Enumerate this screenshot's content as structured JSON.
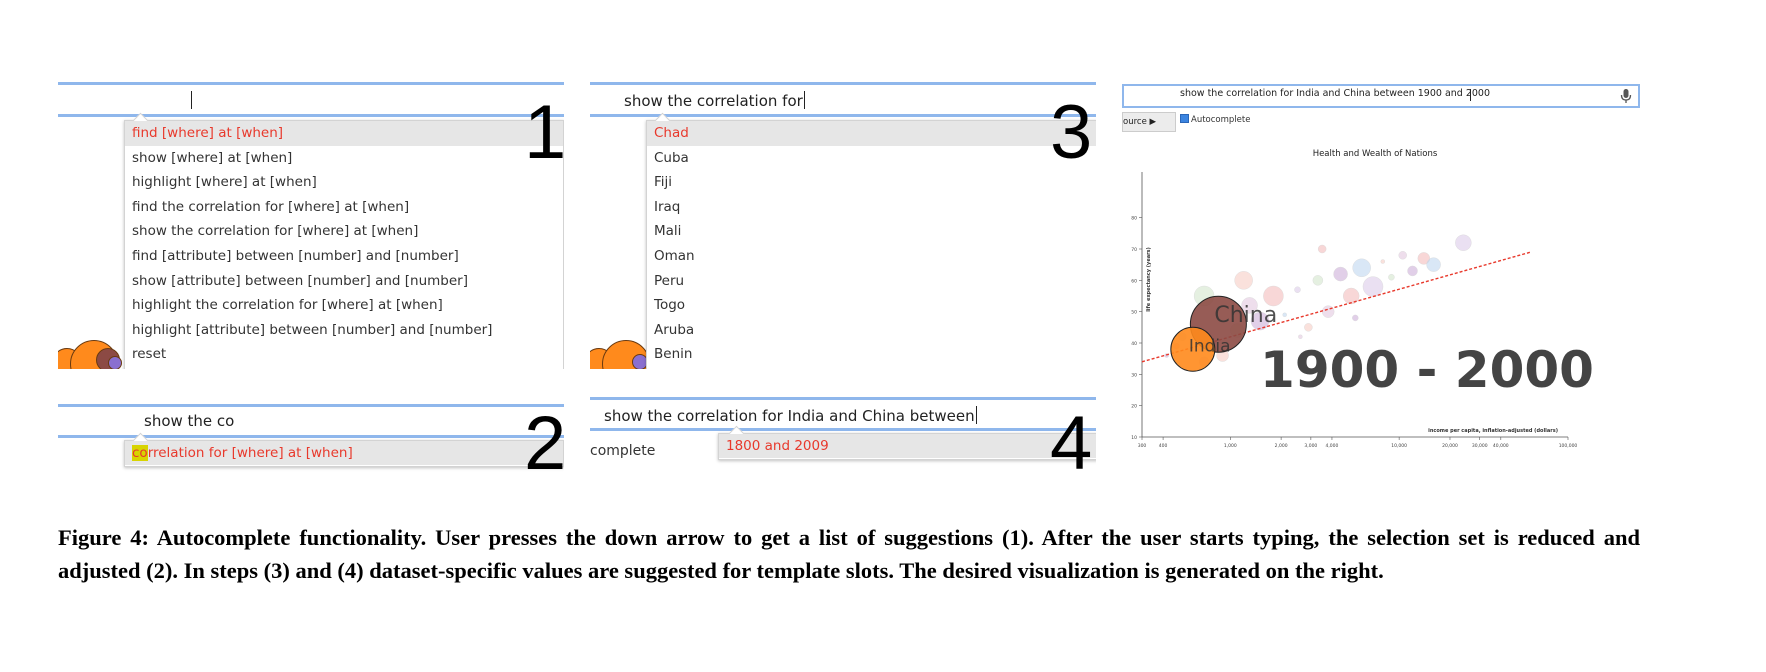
{
  "panel1": {
    "number": "1",
    "query": "",
    "suggestions": [
      "find [where] at [when]",
      "show [where] at [when]",
      "highlight [where] at [when]",
      "find the correlation for [where] at [when]",
      "show the correlation for [where] at [when]",
      "find [attribute] between [number] and [number]",
      "show [attribute] between [number] and [number]",
      "highlight the correlation for [where] at [when]",
      "highlight [attribute] between [number] and [number]",
      "reset"
    ],
    "selected_index": 0
  },
  "panel2": {
    "number": "2",
    "query": "show the co",
    "suggestion_match": "co",
    "suggestion_rest": "rrelation for [where] at [when]"
  },
  "panel3": {
    "number": "3",
    "query": "show the correlation for",
    "suggestions": [
      "Chad",
      "Cuba",
      "Fiji",
      "Iraq",
      "Mali",
      "Oman",
      "Peru",
      "Togo",
      "Aruba",
      "Benin"
    ],
    "selected_index": 0
  },
  "panel4": {
    "number": "4",
    "query": "show the correlation for India and China between",
    "suggestion": "1800 and 2009",
    "side_text": "complete"
  },
  "panel5": {
    "query": "show the correlation for India and China between 1900 and 2000",
    "source_button": "ource ▶",
    "autocomplete_label": "Autocomplete",
    "autocomplete_checked": true,
    "mic": "microphone-icon"
  },
  "chart_data": {
    "type": "scatter",
    "title": "Health and Wealth of Nations",
    "xlabel": "income per capita, inflation-adjusted (dollars)",
    "ylabel": "life expectancy (years)",
    "xscale": "log",
    "xlim": [
      300,
      100000
    ],
    "ylim": [
      10,
      85
    ],
    "x_ticks": [
      "300",
      "400",
      "1,000",
      "2,000",
      "3,000",
      "4,000",
      "10,000",
      "20,000",
      "30,000",
      "40,000",
      "100,000"
    ],
    "x_tick_values": [
      300,
      400,
      1000,
      2000,
      3000,
      4000,
      10000,
      20000,
      30000,
      40000,
      100000
    ],
    "y_ticks": [
      10,
      20,
      30,
      40,
      50,
      60,
      70,
      80
    ],
    "year_label": "1900 - 2000",
    "trend_line": {
      "from": [
        300,
        34
      ],
      "to": [
        60000,
        69
      ]
    },
    "highlighted": [
      {
        "name": "China",
        "x": 850,
        "y": 46,
        "color": "#8c4a44"
      },
      {
        "name": "India",
        "x": 600,
        "y": 38,
        "color": "#ff8a1c"
      }
    ],
    "background_points": [
      {
        "x": 420,
        "y": 36
      },
      {
        "x": 480,
        "y": 39
      },
      {
        "x": 520,
        "y": 42
      },
      {
        "x": 700,
        "y": 34
      },
      {
        "x": 900,
        "y": 36
      },
      {
        "x": 1100,
        "y": 44
      },
      {
        "x": 1300,
        "y": 52
      },
      {
        "x": 1500,
        "y": 47
      },
      {
        "x": 1800,
        "y": 55
      },
      {
        "x": 2100,
        "y": 49
      },
      {
        "x": 2500,
        "y": 57
      },
      {
        "x": 2900,
        "y": 45
      },
      {
        "x": 3300,
        "y": 60
      },
      {
        "x": 3800,
        "y": 50
      },
      {
        "x": 4500,
        "y": 62
      },
      {
        "x": 5200,
        "y": 55
      },
      {
        "x": 6000,
        "y": 64
      },
      {
        "x": 7000,
        "y": 58
      },
      {
        "x": 8000,
        "y": 66
      },
      {
        "x": 9000,
        "y": 61
      },
      {
        "x": 10500,
        "y": 68
      },
      {
        "x": 12000,
        "y": 63
      },
      {
        "x": 14000,
        "y": 67
      },
      {
        "x": 16000,
        "y": 65
      },
      {
        "x": 24000,
        "y": 72
      },
      {
        "x": 1200,
        "y": 60
      },
      {
        "x": 700,
        "y": 55
      },
      {
        "x": 2600,
        "y": 42
      },
      {
        "x": 5500,
        "y": 48
      },
      {
        "x": 3500,
        "y": 70
      }
    ]
  },
  "caption": {
    "label": "Figure 4:",
    "text": "Autocomplete functionality. User presses the down arrow to get a list of suggestions (1). After the user starts typing, the selection set is reduced and adjusted (2). In steps (3) and (4) dataset-specific values are suggested for template slots. The desired visualization is generated on the right."
  }
}
